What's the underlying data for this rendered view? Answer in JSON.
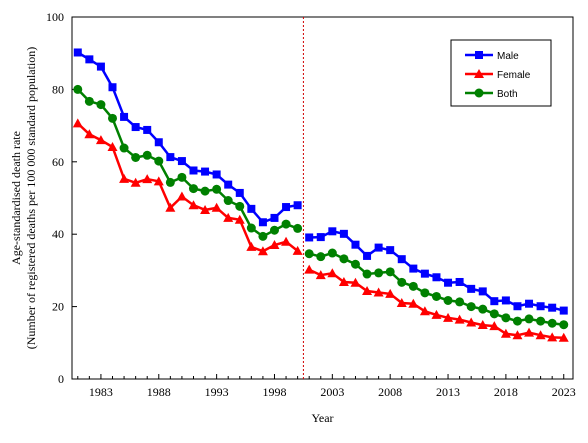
{
  "chart_data": {
    "type": "line",
    "xlabel": "Year",
    "ylabel_line1": "Age-standardised death rate",
    "ylabel_line2": "(Number of registered deaths per 100 000 standard population)",
    "xlim": [
      1980.5,
      2023.8
    ],
    "ylim": [
      0,
      100
    ],
    "yticks": [
      0,
      20,
      40,
      60,
      80,
      100
    ],
    "xticks": [
      1983,
      1988,
      1993,
      1998,
      2003,
      2008,
      2013,
      2018,
      2023
    ],
    "grid": false,
    "legend_position": "top-right",
    "break_year": 2000.5,
    "segments": [
      [
        1981,
        2000
      ],
      [
        2001,
        2023
      ]
    ],
    "x": [
      1981,
      1982,
      1983,
      1984,
      1985,
      1986,
      1987,
      1988,
      1989,
      1990,
      1991,
      1992,
      1993,
      1994,
      1995,
      1996,
      1997,
      1998,
      1999,
      2000,
      2001,
      2002,
      2003,
      2004,
      2005,
      2006,
      2007,
      2008,
      2009,
      2010,
      2011,
      2012,
      2013,
      2014,
      2015,
      2016,
      2017,
      2018,
      2019,
      2020,
      2021,
      2022,
      2023
    ],
    "series": [
      {
        "name": "Male",
        "color": "#0000ff",
        "marker": "square",
        "values": [
          90.2,
          88.3,
          86.3,
          80.6,
          72.4,
          69.6,
          68.8,
          65.4,
          61.3,
          60.2,
          57.6,
          57.3,
          56.5,
          53.7,
          51.4,
          47.0,
          43.3,
          44.5,
          47.5,
          48.0,
          39.1,
          39.2,
          40.8,
          40.1,
          37.1,
          34.0,
          36.3,
          35.6,
          33.1,
          30.5,
          29.1,
          28.1,
          26.6,
          26.8,
          24.9,
          24.2,
          21.5,
          21.7,
          20.1,
          20.8,
          20.1,
          19.7,
          18.9
        ]
      },
      {
        "name": "Female",
        "color": "#ff0000",
        "marker": "triangle",
        "values": [
          70.6,
          67.6,
          66.0,
          64.1,
          55.3,
          54.2,
          55.2,
          54.6,
          47.3,
          50.4,
          48.0,
          46.7,
          47.3,
          44.5,
          44.0,
          36.5,
          35.3,
          37.0,
          37.9,
          35.4,
          30.2,
          28.7,
          29.2,
          26.8,
          26.6,
          24.3,
          23.9,
          23.5,
          21.0,
          20.8,
          18.7,
          17.7,
          16.9,
          16.4,
          15.6,
          14.9,
          14.6,
          12.5,
          12.1,
          12.8,
          12.1,
          11.5,
          11.4
        ]
      },
      {
        "name": "Both",
        "color": "#008000",
        "marker": "circle",
        "values": [
          80.0,
          76.7,
          75.8,
          72.0,
          63.8,
          61.2,
          61.8,
          60.2,
          54.3,
          55.7,
          52.6,
          51.9,
          52.4,
          49.3,
          47.7,
          41.7,
          39.4,
          41.1,
          42.8,
          41.6,
          34.6,
          33.8,
          34.8,
          33.2,
          31.7,
          29.0,
          29.3,
          29.6,
          26.7,
          25.6,
          23.8,
          22.8,
          21.7,
          21.3,
          20.0,
          19.3,
          18.0,
          16.9,
          16.0,
          16.6,
          16.0,
          15.4,
          15.0
        ]
      }
    ]
  }
}
